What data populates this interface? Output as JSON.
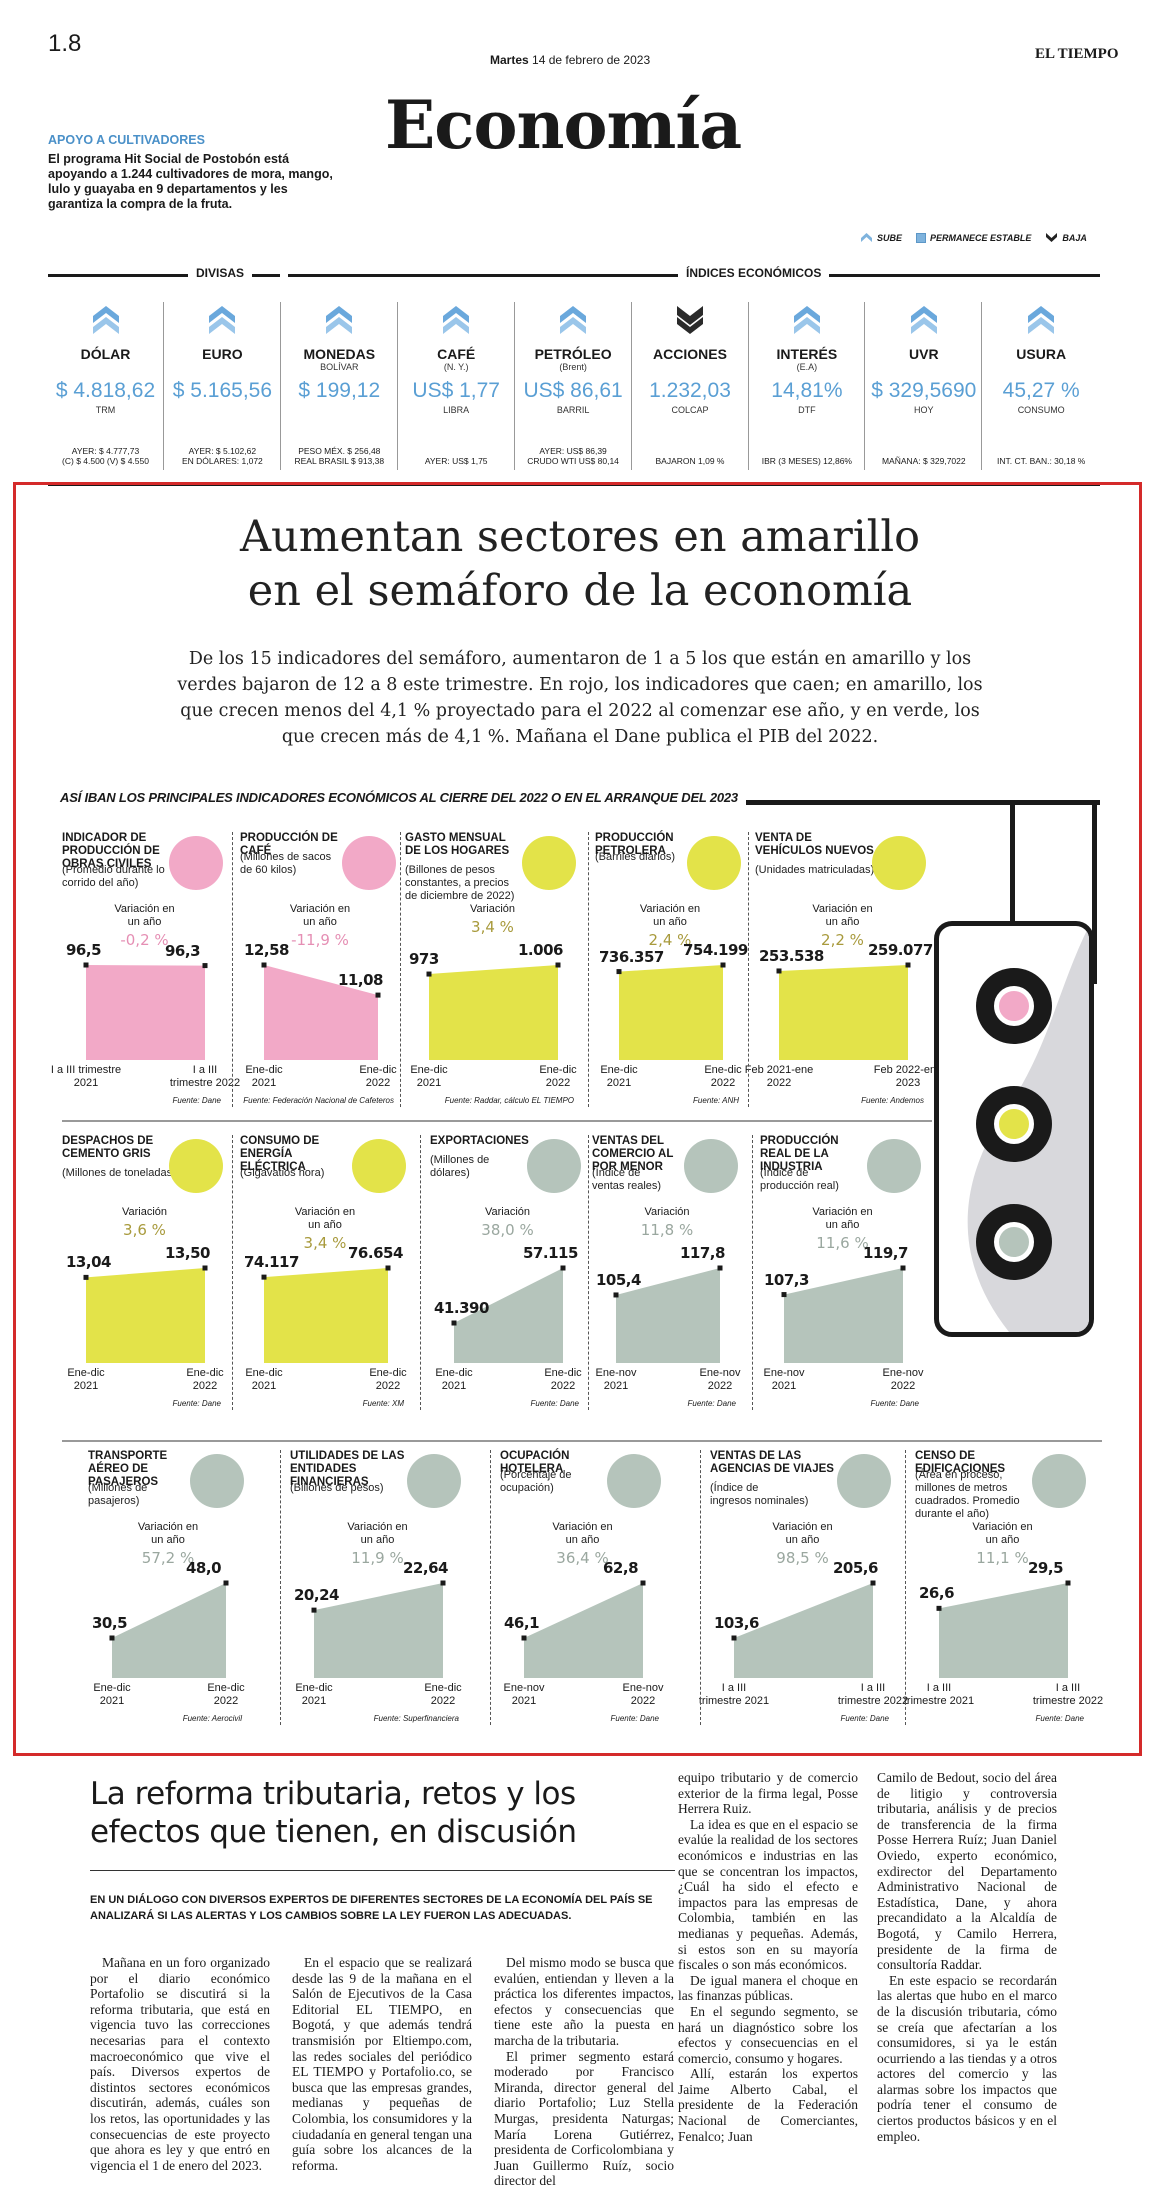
{
  "header": {
    "page_number": "1.8",
    "date_day": "Martes",
    "date_rest": "14 de febrero de 2023",
    "masthead": "EL TIEMPO",
    "section": "Economía",
    "promo_title": "APOYO A CULTIVADORES",
    "promo_body": "El programa Hit Social de Postobón está apoyando a 1.244 cultivadores de mora, mango, lulo y guayaba en 9 departamentos y les garantiza la compra de la fruta.",
    "legend": {
      "up": "SUBE",
      "stable": "PERMANECE ESTABLE",
      "down": "BAJA"
    }
  },
  "indices": {
    "group_divisas": "DIVISAS",
    "group_indices": "ÍNDICES ECONÓMICOS",
    "items": [
      {
        "name": "DÓLAR",
        "sub": "",
        "value": "$ 4.818,62",
        "unit": "TRM",
        "note": "AYER: $ 4.777,73\n(C) $ 4.500 (V) $ 4.550",
        "trend": "up"
      },
      {
        "name": "EURO",
        "sub": "",
        "value": "$ 5.165,56",
        "unit": "",
        "note": "AYER: $ 5.102,62\nEN DÓLARES: 1,072",
        "trend": "up"
      },
      {
        "name": "MONEDAS",
        "sub": "BOLÍVAR",
        "value": "$ 199,12",
        "unit": "",
        "note": "PESO MÉX. $ 256,48\nREAL BRASIL $ 913,38",
        "trend": "up"
      },
      {
        "name": "CAFÉ",
        "sub": "(N. Y.)",
        "value": "US$ 1,77",
        "unit": "LIBRA",
        "note": "AYER: US$ 1,75",
        "trend": "up"
      },
      {
        "name": "PETRÓLEO",
        "sub": "(Brent)",
        "value": "US$ 86,61",
        "unit": "BARRIL",
        "note": "AYER: US$ 86,39\nCRUDO WTI US$ 80,14",
        "trend": "up"
      },
      {
        "name": "ACCIONES",
        "sub": "",
        "value": "1.232,03",
        "unit": "COLCAP",
        "note": "BAJARON 1,09 %",
        "trend": "down"
      },
      {
        "name": "INTERÉS",
        "sub": "(E.A)",
        "value": "14,81%",
        "unit": "DTF",
        "note": "IBR (3 MESES) 12,86%",
        "trend": "up"
      },
      {
        "name": "UVR",
        "sub": "",
        "value": "$ 329,5690",
        "unit": "HOY",
        "note": "MAÑANA: $ 329,7022",
        "trend": "up"
      },
      {
        "name": "USURA",
        "sub": "",
        "value": "45,27 %",
        "unit": "CONSUMO",
        "note": "INT. CT. BAN.: 30,18 %",
        "trend": "up"
      }
    ]
  },
  "feature": {
    "headline_1": "Aumentan sectores en amarillo",
    "headline_2": "en el semáforo de la economía",
    "description": "De los 15 indicadores del semáforo, aumentaron de 1 a 5 los que están en amarillo y los verdes bajaron de 12 a 8 este trimestre. En rojo, los indicadores que caen; en amarillo, los que crecen menos del 4,1 % proyectado para el 2022 al comenzar ese año, y en verde, los que crecen más de 4,1 %. Mañana el Dane publica el PIB del 2022.",
    "chart_subtitle": "ASÍ IBAN LOS PRINCIPALES INDICADORES ECONÓMICOS AL CIERRE DEL 2022 O EN EL ARRANQUE DEL 2023"
  },
  "chart_data": [
    {
      "type": "area",
      "title": "INDICADOR DE PRODUCCIÓN DE OBRAS CIVILES",
      "unit": "(Promedio durante lo corrido del año)",
      "categories": [
        "I a III trimestre\n2021",
        "I a III\ntrimestre 2022"
      ],
      "values": [
        96.5,
        96.3
      ],
      "value_labels": [
        "96,5",
        "96,3"
      ],
      "variation_label": "Variación en\nun año",
      "variation": "-0,2 %",
      "status": "red",
      "color": "#f2a9c7",
      "var_color": "#e58fb4",
      "source": "Fuente: Dane"
    },
    {
      "type": "area",
      "title": "PRODUCCIÓN DE CAFÉ",
      "unit": "(Millones de sacos\nde 60 kilos)",
      "categories": [
        "Ene-dic\n2021",
        "Ene-dic\n2022"
      ],
      "values": [
        12.58,
        11.08
      ],
      "value_labels": [
        "12,58",
        "11,08"
      ],
      "variation_label": "Variación en\nun año",
      "variation": "-11,9 %",
      "status": "red",
      "color": "#f2a9c7",
      "var_color": "#e58fb4",
      "source": "Fuente: Federación Nacional de Cafeteros"
    },
    {
      "type": "area",
      "title": "GASTO MENSUAL DE LOS HOGARES",
      "unit": "(Billones de pesos\nconstantes, a precios\nde diciembre de 2022)",
      "categories": [
        "Ene-dic\n2021",
        "Ene-dic\n2022"
      ],
      "values": [
        973,
        1006
      ],
      "value_labels": [
        "973",
        "1.006"
      ],
      "variation_label": "Variación",
      "variation": "3,4 %",
      "status": "yellow",
      "color": "#e3e349",
      "var_color": "#a89a3c",
      "source": "Fuente: Raddar, cálculo EL TIEMPO"
    },
    {
      "type": "area",
      "title": "PRODUCCIÓN PETROLERA",
      "unit": "(Barriles diarios)",
      "categories": [
        "Ene-dic\n2021",
        "Ene-dic\n2022"
      ],
      "values": [
        736357,
        754199
      ],
      "value_labels": [
        "736.357",
        "754.199"
      ],
      "variation_label": "Variación en\nun año",
      "variation": "2,4 %",
      "status": "yellow",
      "color": "#e3e349",
      "var_color": "#a89a3c",
      "source": "Fuente: ANH"
    },
    {
      "type": "area",
      "title": "VENTA DE VEHÍCULOS NUEVOS",
      "unit": "(Unidades matriculadas)",
      "categories": [
        "Feb 2021-ene\n2022",
        "Feb 2022-ene\n2023"
      ],
      "values": [
        253538,
        259077
      ],
      "value_labels": [
        "253.538",
        "259.077"
      ],
      "variation_label": "Variación en\nun año",
      "variation": "2,2 %",
      "status": "yellow",
      "color": "#e3e349",
      "var_color": "#a89a3c",
      "source": "Fuente: Andemos"
    },
    {
      "type": "area",
      "title": "DESPACHOS DE CEMENTO GRIS",
      "unit": "(Millones de toneladas)",
      "categories": [
        "Ene-dic\n2021",
        "Ene-dic\n2022"
      ],
      "values": [
        13.04,
        13.5
      ],
      "value_labels": [
        "13,04",
        "13,50"
      ],
      "variation_label": "Variación",
      "variation": "3,6 %",
      "status": "yellow",
      "color": "#e3e349",
      "var_color": "#a89a3c",
      "source": "Fuente: Dane"
    },
    {
      "type": "area",
      "title": "CONSUMO DE ENERGÍA ELÉCTRICA",
      "unit": "(Gigavatios hora)",
      "categories": [
        "Ene-dic\n2021",
        "Ene-dic\n2022"
      ],
      "values": [
        74117,
        76654
      ],
      "value_labels": [
        "74.117",
        "76.654"
      ],
      "variation_label": "Variación en\nun año",
      "variation": "3,4 %",
      "status": "yellow",
      "color": "#e3e349",
      "var_color": "#a89a3c",
      "source": "Fuente: XM"
    },
    {
      "type": "area",
      "title": "EXPORTACIONES",
      "unit": "(Millones de\ndólares)",
      "categories": [
        "Ene-dic\n2021",
        "Ene-dic\n2022"
      ],
      "values": [
        41390,
        57115
      ],
      "value_labels": [
        "41.390",
        "57.115"
      ],
      "variation_label": "Variación",
      "variation": "38,0 %",
      "status": "green",
      "color": "#b5c4bb",
      "var_color": "#9aa79f",
      "source": "Fuente: Dane"
    },
    {
      "type": "area",
      "title": "VENTAS DEL COMERCIO AL POR MENOR",
      "unit": "(Índice de\nventas reales)",
      "categories": [
        "Ene-nov\n2021",
        "Ene-nov\n2022"
      ],
      "values": [
        105.4,
        117.8
      ],
      "value_labels": [
        "105,4",
        "117,8"
      ],
      "variation_label": "Variación",
      "variation": "11,8 %",
      "status": "green",
      "color": "#b5c4bb",
      "var_color": "#9aa79f",
      "source": "Fuente: Dane"
    },
    {
      "type": "area",
      "title": "PRODUCCIÓN REAL DE LA INDUSTRIA",
      "unit": "(Índice de\nproducción real)",
      "categories": [
        "Ene-nov\n2021",
        "Ene-nov\n2022"
      ],
      "values": [
        107.3,
        119.7
      ],
      "value_labels": [
        "107,3",
        "119,7"
      ],
      "variation_label": "Variación en\nun año",
      "variation": "11,6 %",
      "status": "green",
      "color": "#b5c4bb",
      "var_color": "#9aa79f",
      "source": "Fuente: Dane"
    },
    {
      "type": "area",
      "title": "TRANSPORTE AÉREO DE PASAJEROS",
      "unit": "(Millones de\npasajeros)",
      "categories": [
        "Ene-dic\n2021",
        "Ene-dic\n2022"
      ],
      "values": [
        30.5,
        48.0
      ],
      "value_labels": [
        "30,5",
        "48,0"
      ],
      "variation_label": "Variación en\nun año",
      "variation": "57,2 %",
      "status": "green",
      "color": "#b5c4bb",
      "var_color": "#9aa79f",
      "source": "Fuente: Aerocivil"
    },
    {
      "type": "area",
      "title": "UTILIDADES DE LAS ENTIDADES FINANCIERAS",
      "unit": "(Billones de pesos)",
      "categories": [
        "Ene-dic\n2021",
        "Ene-dic\n2022"
      ],
      "values": [
        20.24,
        22.64
      ],
      "value_labels": [
        "20,24",
        "22,64"
      ],
      "variation_label": "Variación en\nun año",
      "variation": "11,9 %",
      "status": "green",
      "color": "#b5c4bb",
      "var_color": "#9aa79f",
      "source": "Fuente: Superfinanciera"
    },
    {
      "type": "area",
      "title": "OCUPACIÓN HOTELERA",
      "unit": "(Porcentaje de\nocupación)",
      "categories": [
        "Ene-nov\n2021",
        "Ene-nov\n2022"
      ],
      "values": [
        46.1,
        62.8
      ],
      "value_labels": [
        "46,1",
        "62,8"
      ],
      "variation_label": "Variación en\nun año",
      "variation": "36,4 %",
      "status": "green",
      "color": "#b5c4bb",
      "var_color": "#9aa79f",
      "source": "Fuente: Dane"
    },
    {
      "type": "area",
      "title": "VENTAS DE LAS AGENCIAS DE VIAJES",
      "unit": "(Índice de\ningresos nominales)",
      "categories": [
        "I a III\ntrimestre 2021",
        "I a III\ntrimestre 2022"
      ],
      "values": [
        103.6,
        205.6
      ],
      "value_labels": [
        "103,6",
        "205,6"
      ],
      "variation_label": "Variación en\nun año",
      "variation": "98,5 %",
      "status": "green",
      "color": "#b5c4bb",
      "var_color": "#9aa79f",
      "source": "Fuente: Dane"
    },
    {
      "type": "area",
      "title": "CENSO DE EDIFICACIONES",
      "unit": "(Área en proceso,\nmillones de metros\ncuadrados. Promedio\ndurante el año)",
      "categories": [
        "I a III\ntrimestre 2021",
        "I a III\ntrimestre 2022"
      ],
      "values": [
        26.6,
        29.5
      ],
      "value_labels": [
        "26,6",
        "29,5"
      ],
      "variation_label": "Variación en\nun año",
      "variation": "11,1 %",
      "status": "green",
      "color": "#b5c4bb",
      "var_color": "#9aa79f",
      "source": "Fuente: Dane"
    }
  ],
  "article": {
    "headline": "La reforma tributaria, retos y los efectos que tienen, en discusión",
    "lead": "EN UN DIÁLOGO CON DIVERSOS EXPERTOS DE DIFERENTES SECTORES DE LA ECONOMÍA DEL PAÍS SE ANALIZARÁ SI LAS ALERTAS Y LOS CAMBIOS SOBRE LA LEY FUERON LAS ADECUADAS.",
    "col1": [
      "Mañana en un foro organizado por el diario económico Portafolio se discutirá si la reforma tributaria, que está en vigencia tuvo las correcciones necesarias para el contexto macroeconómico que vive el país. Diversos expertos de distintos sectores económicos discutirán, además, cuáles son los retos, las oportunidades y las consecuencias de este proyecto que ahora es ley y que entró en vigencia el 1 de enero del 2023."
    ],
    "col2": [
      "En el espacio que se realizará desde las 9 de la mañana en el Salón de Ejecutivos de la Casa Editorial EL TIEMPO, en Bogotá, y que además tendrá transmisión por Eltiempo.com, las redes sociales del periódico EL TIEMPO y Portafolio.co, se busca que las empresas grandes, medianas y pequeñas de Colombia, los consumidores y la ciudadanía en general tengan una guía sobre los alcances de la reforma."
    ],
    "col3": [
      "Del mismo modo se busca que evalúen, entiendan y lleven a la práctica los diferentes impactos, efectos y consecuencias que tiene este año la puesta en marcha de la tributaria.",
      "El primer segmento estará moderado por Francisco Miranda, director general del diario Portafolio; Luz Stella Murgas, presidenta Naturgas; María Lorena Gutiérrez, presidenta de Corficolombiana y Juan Guillermo Ruíz, socio director del"
    ],
    "col4": [
      "equipo tributario y de comercio exterior de la firma legal, Posse Herrera Ruiz.",
      "La idea es que en el espacio se evalúe la realidad de los sectores económicos e industrias en las que se concentran los impactos, ¿Cuál ha sido el efecto e impactos para las empresas de Colombia, también en las medianas y pequeñas. Además, si estos son en su mayoría fiscales o son más económicos.",
      "De igual manera el choque en las finanzas públicas.",
      "En el segundo segmento, se hará un diagnóstico sobre los efectos y consecuencias en el comercio, consumo y hogares.",
      "Allí, estarán los expertos Jaime Alberto Cabal, el presidente de la Federación Nacional de Comerciantes, Fenalco; Juan"
    ],
    "col5": [
      "Camilo de Bedout, socio del área de litigio y controversia tributaria, análisis y de precios de transferencia de la firma Posse Herrera Ruíz; Juan Daniel Oviedo, experto económico, exdirector del Departamento Administrativo Nacional de Estadística, Dane, y ahora precandidato a la Alcaldía de Bogotá, y Camilo Herrera, presidente de la firma de consultoría Raddar.",
      "En este espacio se recordarán las alertas que hubo en el marco de la discusión tributaria, cómo se creía que afectarían a los consumidores, si ya le están ocurriendo a las tiendas y a otros actores del comercio y las alarmas sobre los impactos que podría tener el consumo de ciertos productos básicos y en el empleo."
    ]
  }
}
